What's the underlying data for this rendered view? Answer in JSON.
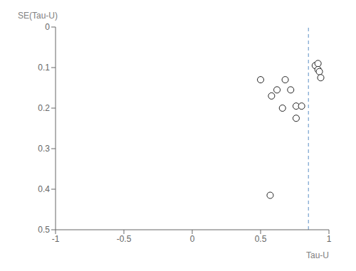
{
  "chart_data": {
    "type": "scatter",
    "title": "",
    "xlabel": "Tau-U",
    "ylabel": "SE(Tau-U)",
    "x": [
      0.5,
      0.58,
      0.62,
      0.66,
      0.68,
      0.72,
      0.76,
      0.76,
      0.8,
      0.57,
      0.9,
      0.92,
      0.92,
      0.93,
      0.94
    ],
    "values": [
      0.13,
      0.17,
      0.155,
      0.2,
      0.13,
      0.155,
      0.195,
      0.225,
      0.195,
      0.415,
      0.095,
      0.09,
      0.105,
      0.11,
      0.125
    ],
    "color": "#222222",
    "marker": "open_circle",
    "xlim": [
      -1,
      1
    ],
    "ylim": [
      0.5,
      0
    ],
    "xticks": [
      -1,
      -0.5,
      0,
      0.5,
      1
    ],
    "yticks": [
      0,
      0.1,
      0.2,
      0.3,
      0.4,
      0.5
    ],
    "grid": false,
    "vline": {
      "x": 0.85,
      "color": "#5B8EC5",
      "line_style": "dashed"
    }
  }
}
